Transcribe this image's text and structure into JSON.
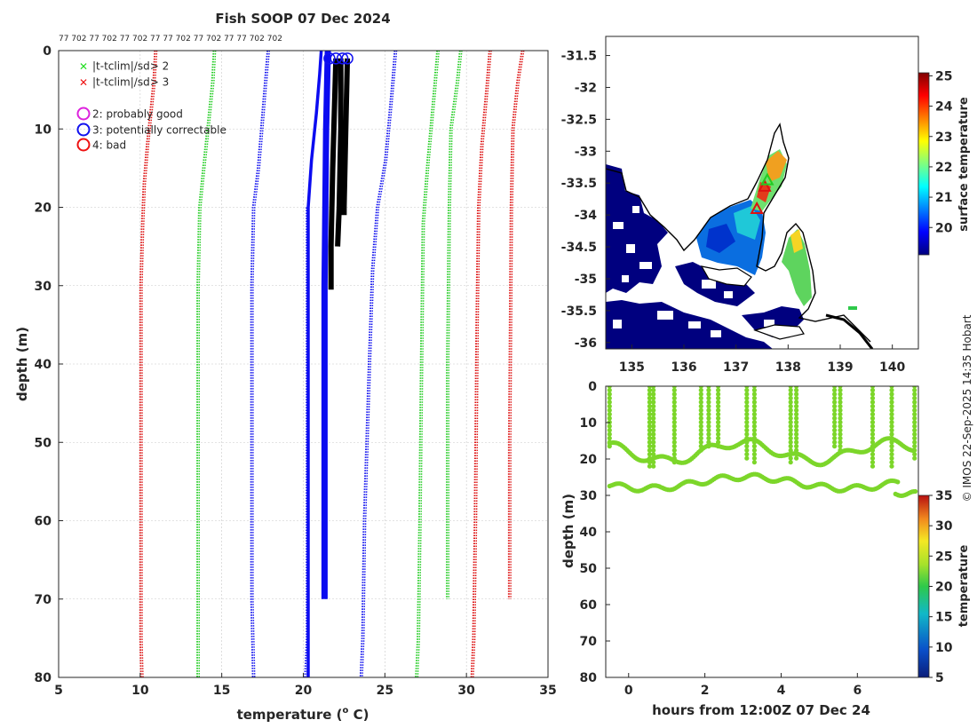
{
  "chart_data": [
    {
      "type": "line",
      "title": "Fish SOOP 07 Dec 2024",
      "xlabel": "temperature (° C)",
      "xlabel_main": "temperature (",
      "xlabel_sup": "o",
      "xlabel_end": " C)",
      "ylabel": "depth (m)",
      "xlim": [
        5,
        35
      ],
      "ylim": [
        80,
        0
      ],
      "xticks": [
        5,
        10,
        15,
        20,
        25,
        30,
        35
      ],
      "yticks": [
        0,
        10,
        20,
        30,
        40,
        50,
        60,
        70,
        80
      ],
      "top_labels": "77 702 77 702 77 702 77 77 702 77 702 77 77 702 702",
      "legend": [
        {
          "label": "|t-tclim|/sd> 2",
          "marker": "x",
          "color": "#22dd22"
        },
        {
          "label": "|t-tclim|/sd> 3",
          "marker": "x",
          "color": "#ee1111"
        },
        {
          "label": "2: probably good",
          "marker": "o",
          "color": "#dd22dd"
        },
        {
          "label": "3: potentially correctable",
          "marker": "o",
          "color": "#1111ee"
        },
        {
          "label": "4: bad",
          "marker": "o",
          "color": "#ee1111"
        }
      ],
      "climatology_series": [
        {
          "name": "clim -3sd left",
          "color": "#dd1111",
          "points": [
            [
              10.9,
              0
            ],
            [
              10.8,
              4
            ],
            [
              10.6,
              8
            ],
            [
              10.4,
              12
            ],
            [
              10.2,
              17
            ],
            [
              10.1,
              22
            ],
            [
              10.0,
              30
            ],
            [
              10.0,
              75
            ],
            [
              10.05,
              80
            ]
          ]
        },
        {
          "name": "clim -2sd left",
          "color": "#22cc22",
          "points": [
            [
              14.5,
              0
            ],
            [
              14.4,
              4
            ],
            [
              14.2,
              8
            ],
            [
              14.0,
              12
            ],
            [
              13.8,
              16
            ],
            [
              13.6,
              20
            ],
            [
              13.5,
              30
            ],
            [
              13.5,
              70
            ],
            [
              13.5,
              80
            ]
          ]
        },
        {
          "name": "clim -1sd left",
          "color": "#1111ee",
          "points": [
            [
              17.8,
              0
            ],
            [
              17.6,
              5
            ],
            [
              17.4,
              10
            ],
            [
              17.2,
              15
            ],
            [
              16.9,
              20
            ],
            [
              16.8,
              30
            ],
            [
              16.8,
              70
            ],
            [
              16.9,
              80
            ]
          ]
        },
        {
          "name": "clim mean left",
          "color": "#1111ee",
          "points": [
            [
              20.2,
              20
            ],
            [
              20.2,
              50
            ],
            [
              20.2,
              75
            ],
            [
              20.1,
              80
            ]
          ]
        },
        {
          "name": "clim +1sd",
          "color": "#1111ee",
          "points": [
            [
              25.6,
              0
            ],
            [
              25.4,
              5
            ],
            [
              25.0,
              14
            ],
            [
              24.5,
              20
            ],
            [
              24.2,
              28
            ],
            [
              24.0,
              40
            ],
            [
              23.7,
              60
            ],
            [
              23.6,
              75
            ],
            [
              23.5,
              80
            ]
          ]
        },
        {
          "name": "clim +2sd a",
          "color": "#22cc22",
          "points": [
            [
              28.2,
              0
            ],
            [
              28.0,
              5
            ],
            [
              27.6,
              14
            ],
            [
              27.3,
              22
            ],
            [
              27.2,
              40
            ],
            [
              27.1,
              60
            ],
            [
              27.0,
              75
            ],
            [
              26.9,
              80
            ]
          ]
        },
        {
          "name": "clim +2sd b",
          "color": "#22cc22",
          "points": [
            [
              29.6,
              0
            ],
            [
              29.4,
              4
            ],
            [
              29.0,
              10
            ],
            [
              28.9,
              20
            ],
            [
              28.8,
              40
            ],
            [
              28.8,
              70
            ]
          ]
        },
        {
          "name": "clim +3sd a",
          "color": "#dd1111",
          "points": [
            [
              31.4,
              0
            ],
            [
              31.2,
              5
            ],
            [
              30.9,
              12
            ],
            [
              30.7,
              20
            ],
            [
              30.6,
              35
            ],
            [
              30.5,
              60
            ],
            [
              30.4,
              75
            ],
            [
              30.3,
              80
            ]
          ]
        },
        {
          "name": "clim +3sd b",
          "color": "#dd1111",
          "points": [
            [
              33.4,
              0
            ],
            [
              33.1,
              4
            ],
            [
              32.8,
              10
            ],
            [
              32.7,
              20
            ],
            [
              32.6,
              50
            ],
            [
              32.6,
              70
            ]
          ]
        }
      ],
      "profiles": [
        {
          "name": "cast bold blue",
          "color": "#0b0bf0",
          "points": [
            [
              21.1,
              0
            ],
            [
              21.0,
              3
            ],
            [
              20.8,
              8
            ],
            [
              20.5,
              14
            ],
            [
              20.3,
              20
            ],
            [
              20.3,
              50
            ],
            [
              20.3,
              80
            ]
          ]
        },
        {
          "name": "cast thick blue",
          "color": "#0b0bf0",
          "points": [
            [
              21.5,
              0
            ],
            [
              21.4,
              10
            ],
            [
              21.3,
              30
            ],
            [
              21.3,
              50
            ],
            [
              21.3,
              70
            ]
          ]
        },
        {
          "name": "cast black 1",
          "color": "#000000",
          "points": [
            [
              22.0,
              1
            ],
            [
              21.9,
              8
            ],
            [
              21.8,
              15
            ],
            [
              21.7,
              25
            ],
            [
              21.7,
              30.5
            ]
          ]
        },
        {
          "name": "cast black 2",
          "color": "#000000",
          "points": [
            [
              22.3,
              1
            ],
            [
              22.3,
              10
            ],
            [
              22.2,
              20
            ],
            [
              22.1,
              25
            ]
          ]
        },
        {
          "name": "cast black 3",
          "color": "#000000",
          "points": [
            [
              22.7,
              1
            ],
            [
              22.6,
              10
            ],
            [
              22.5,
              20
            ],
            [
              22.5,
              21
            ]
          ]
        }
      ],
      "flag_circles": [
        [
          21.6,
          1
        ],
        [
          22.0,
          1
        ],
        [
          22.4,
          1
        ],
        [
          22.7,
          1
        ]
      ]
    },
    {
      "type": "heatmap",
      "title": "",
      "xlim": [
        134.5,
        140.5
      ],
      "ylim": [
        -36.1,
        -31.2
      ],
      "xticks": [
        135,
        136,
        137,
        138,
        139,
        140
      ],
      "yticks": [
        -31.5,
        -32,
        -32.5,
        -33,
        -33.5,
        -34,
        -34.5,
        -35,
        -35.5,
        -36
      ],
      "colorbar_label": "surface temperature",
      "colorbar_ticks": [
        20,
        21,
        22,
        23,
        24,
        25
      ],
      "colorbar_range": [
        19.1,
        25.1
      ],
      "markers": [
        {
          "lon": 137.4,
          "lat": -33.9,
          "symbol": "triangle",
          "color": "#dd1111"
        },
        {
          "lon": 137.55,
          "lat": -33.55,
          "symbol": "triangle",
          "color": "#dd1111"
        },
        {
          "lon": 137.6,
          "lat": -33.45,
          "symbol": "triangle",
          "color": "#22cc22"
        }
      ]
    },
    {
      "type": "scatter",
      "title": "",
      "xlabel": "hours from 12:00Z 07 Dec 24",
      "ylabel": "depth (m)",
      "xlim": [
        -0.6,
        7.6
      ],
      "ylim": [
        80,
        0
      ],
      "xticks": [
        0,
        2,
        4,
        6
      ],
      "yticks": [
        0,
        10,
        20,
        30,
        40,
        50,
        60,
        70,
        80
      ],
      "colorbar_label": "temperature",
      "colorbar_ticks": [
        5,
        10,
        15,
        20,
        25,
        30,
        35
      ],
      "colorbar_range": [
        5,
        35
      ],
      "casts_hours": [
        -0.5,
        0.55,
        0.65,
        1.2,
        1.9,
        2.1,
        2.35,
        3.1,
        3.3,
        4.25,
        4.4,
        5.4,
        5.55,
        6.4,
        6.9,
        7.5
      ],
      "shallow_band_value_temp": 21.5,
      "deep_band_value_temp": 20.5
    }
  ],
  "credit": "© IMOS 22-Sep-2025 14:35 Hobart"
}
